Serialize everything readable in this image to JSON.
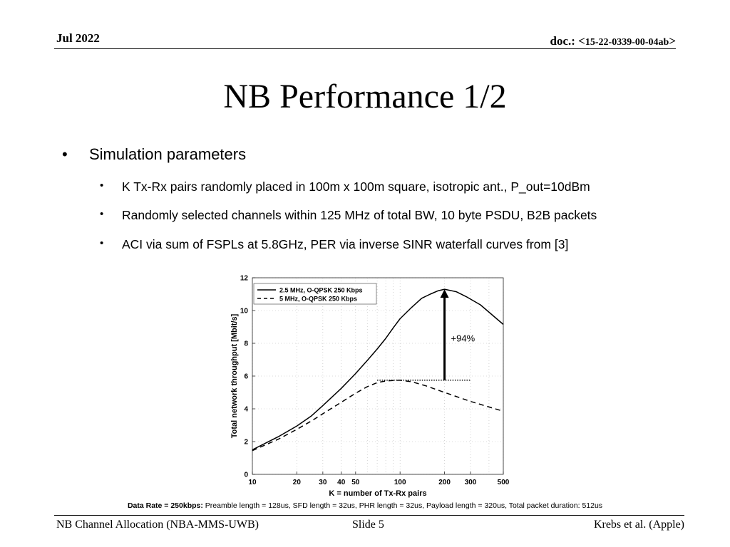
{
  "header": {
    "date": "Jul 2022",
    "doc_prefix": "doc.: <",
    "doc_number": "15-22-0339-00-04ab",
    "doc_suffix": ">"
  },
  "title": "NB Performance 1/2",
  "bullet": "Simulation parameters",
  "sub_bullets": [
    "K Tx-Rx pairs randomly placed in 100m x 100m square, isotropic ant., P_out=10dBm",
    "Randomly selected channels within 125 MHz of total BW, 10 byte PSDU, B2B packets",
    "ACI via sum of FSPLs at 5.8GHz, PER via inverse SINR waterfall curves from [3]"
  ],
  "chart_data": {
    "type": "line",
    "xscale": "log",
    "xlim": [
      10,
      500
    ],
    "ylim": [
      0,
      12
    ],
    "xticks": [
      10,
      20,
      30,
      40,
      50,
      100,
      200,
      300,
      500
    ],
    "yticks": [
      0,
      2,
      4,
      6,
      8,
      10,
      12
    ],
    "xlabel": "K = number of Tx-Rx pairs",
    "ylabel": "Total network throughput [Mbit/s]",
    "grid": true,
    "legend_position": "top-left",
    "series": [
      {
        "name": "2.5 MHz, O-QPSK 250 Kbps",
        "style": "solid",
        "x": [
          10,
          15,
          20,
          25,
          30,
          40,
          50,
          60,
          70,
          80,
          90,
          100,
          120,
          140,
          160,
          180,
          200,
          240,
          280,
          350,
          500
        ],
        "y": [
          1.5,
          2.3,
          2.95,
          3.55,
          4.2,
          5.25,
          6.15,
          6.95,
          7.65,
          8.3,
          8.95,
          9.5,
          10.2,
          10.75,
          11.0,
          11.2,
          11.3,
          11.15,
          10.85,
          10.35,
          9.15
        ]
      },
      {
        "name": "5 MHz, O-QPSK 250 Kbps",
        "style": "dashed",
        "x": [
          10,
          15,
          20,
          25,
          30,
          40,
          50,
          60,
          70,
          80,
          90,
          100,
          120,
          150,
          200,
          300,
          500
        ],
        "y": [
          1.45,
          2.15,
          2.75,
          3.25,
          3.7,
          4.4,
          4.95,
          5.35,
          5.6,
          5.7,
          5.73,
          5.75,
          5.65,
          5.4,
          5.0,
          4.45,
          3.85
        ]
      }
    ],
    "annotation": {
      "text": "+94%",
      "arrow_x": 200,
      "arrow_from_y": 5.75,
      "arrow_to_y": 11.3,
      "baseline_from_x": 70,
      "baseline_to_x": 300
    }
  },
  "footnote": {
    "bold": "Data Rate = 250kbps:",
    "text": " Preamble length = 128us, SFD length = 32us, PHR length = 32us, Payload length = 320us, Total packet duration: 512us"
  },
  "footer": {
    "left": "NB Channel Allocation (NBA-MMS-UWB)",
    "middle": "Slide 5",
    "right": "Krebs et al. (Apple)"
  }
}
